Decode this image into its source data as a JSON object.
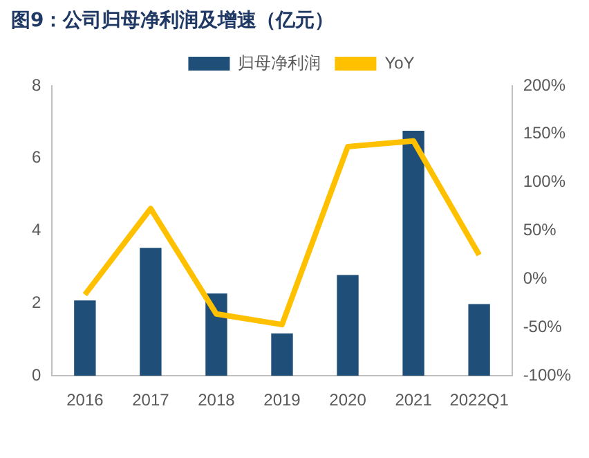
{
  "chart_data": {
    "type": "bar",
    "title": "图9：公司归母净利润及增速（亿元）",
    "categories": [
      "2016",
      "2017",
      "2018",
      "2019",
      "2020",
      "2021",
      "2022Q1"
    ],
    "series": [
      {
        "name": "归母净利润",
        "color": "#1f4e79",
        "values": [
          2.08,
          3.53,
          2.27,
          1.17,
          2.78,
          6.76,
          1.98
        ]
      },
      {
        "name": "YoY",
        "type": "line",
        "axis": "y2",
        "color": "#ffc000",
        "values": [
          -16,
          73,
          -36,
          -47,
          137,
          143,
          25
        ]
      }
    ],
    "ylim": [
      0,
      8
    ],
    "yticks": [
      0,
      2,
      4,
      6,
      8
    ],
    "y2lim": [
      -100,
      200
    ],
    "y2ticks": [
      {
        "value": -100,
        "label": "-100%"
      },
      {
        "value": -50,
        "label": "-50%"
      },
      {
        "value": 0,
        "label": "0%"
      },
      {
        "value": 50,
        "label": "50%"
      },
      {
        "value": 100,
        "label": "100%"
      },
      {
        "value": 150,
        "label": "150%"
      },
      {
        "value": 200,
        "label": "200%"
      }
    ],
    "legend": "top",
    "grid": false,
    "marker": "none"
  }
}
